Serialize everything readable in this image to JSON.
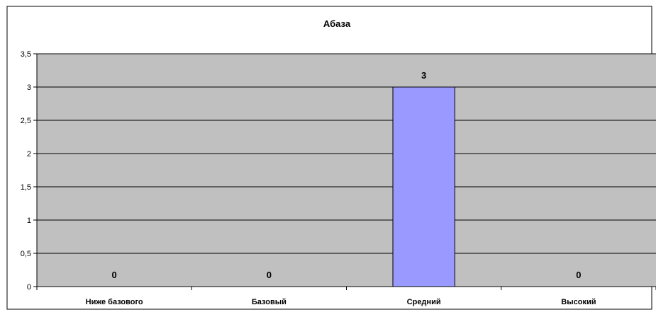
{
  "chart_data": {
    "type": "bar",
    "title": "Абаза",
    "xlabel": "",
    "ylabel": "",
    "categories": [
      "Ниже базового",
      "Базовый",
      "Средний",
      "Высокий"
    ],
    "values": [
      0,
      0,
      3,
      0
    ],
    "data_labels": [
      "0",
      "0",
      "3",
      "0"
    ],
    "ylim": [
      0,
      3.5
    ],
    "yticks": [
      0,
      0.5,
      1,
      1.5,
      2,
      2.5,
      3,
      3.5
    ],
    "ytick_labels": [
      "0",
      "0,5",
      "1",
      "1,5",
      "2",
      "2,5",
      "3",
      "3,5"
    ],
    "grid": true,
    "legend": "none",
    "colors": {
      "plot_background": "#c0c0c0",
      "bar_fill": "#9999ff",
      "bar_stroke": "#000000",
      "gridline": "#000000",
      "page_background": "#ffffff"
    }
  }
}
